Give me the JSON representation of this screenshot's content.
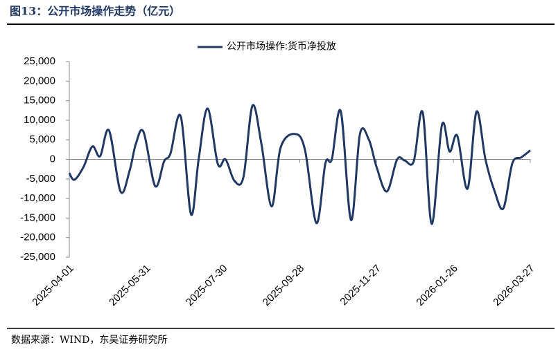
{
  "header": {
    "title": "图13：公开市场操作走势（亿元）"
  },
  "chart_data": {
    "type": "line",
    "x": [
      "2025-04-01",
      "2025-04-05",
      "2025-04-12",
      "2025-04-19",
      "2025-04-25",
      "2025-05-02",
      "2025-05-11",
      "2025-05-18",
      "2025-05-23",
      "2025-05-29",
      "2025-06-07",
      "2025-06-14",
      "2025-06-19",
      "2025-06-27",
      "2025-07-05",
      "2025-07-11",
      "2025-07-18",
      "2025-07-26",
      "2025-08-01",
      "2025-08-08",
      "2025-08-15",
      "2025-08-22",
      "2025-08-29",
      "2025-09-06",
      "2025-09-13",
      "2025-09-24",
      "2025-10-02",
      "2025-10-11",
      "2025-10-18",
      "2025-10-23",
      "2025-10-30",
      "2025-11-07",
      "2025-11-14",
      "2025-11-21",
      "2025-11-27",
      "2025-12-05",
      "2025-12-13",
      "2025-12-19",
      "2025-12-26",
      "2026-01-02",
      "2026-01-09",
      "2026-01-17",
      "2026-01-23",
      "2026-01-29",
      "2026-02-06",
      "2026-02-13",
      "2026-02-20",
      "2026-02-27",
      "2026-03-06",
      "2026-03-13",
      "2026-03-20",
      "2026-03-27"
    ],
    "series": [
      {
        "name": "公开市场操作:货币净投放",
        "color": "#1f3864",
        "values": [
          -3500,
          -5200,
          -2000,
          3300,
          800,
          7400,
          -8200,
          -3000,
          4000,
          7000,
          -6800,
          -500,
          1500,
          11000,
          -14000,
          0,
          13000,
          -1200,
          0,
          -5500,
          -4500,
          13700,
          4000,
          -12000,
          3000,
          6500,
          2500,
          -16300,
          -1000,
          0,
          12300,
          -15500,
          6500,
          5000,
          -2000,
          -8200,
          0,
          -300,
          -500,
          12000,
          -16500,
          8800,
          2000,
          6000,
          -7500,
          12200,
          0,
          -8000,
          -12500,
          -1000,
          500,
          2300
        ]
      }
    ],
    "xlim": [
      "2025-04-01",
      "2026-03-27"
    ],
    "xticks": [
      "2025-04-01",
      "2025-05-31",
      "2025-07-30",
      "2025-09-28",
      "2025-11-27",
      "2026-01-26",
      "2026-03-27"
    ],
    "ylim": [
      -25000,
      25000
    ],
    "yticks": [
      {
        "value": -25000,
        "label": "-25,000"
      },
      {
        "value": -20000,
        "label": "-20,000"
      },
      {
        "value": -15000,
        "label": "-15,000"
      },
      {
        "value": -10000,
        "label": "-10,000"
      },
      {
        "value": -5000,
        "label": "-5,000"
      },
      0,
      {
        "value": 5000,
        "label": "5,000"
      },
      {
        "value": 10000,
        "label": "10,000"
      },
      {
        "value": 15000,
        "label": "15,000"
      },
      {
        "value": 20000,
        "label": "20,000"
      },
      {
        "value": 25000,
        "label": "25,000"
      }
    ],
    "legend": "top"
  },
  "footer": {
    "source": "数据来源：WIND，东吴证券研究所"
  }
}
